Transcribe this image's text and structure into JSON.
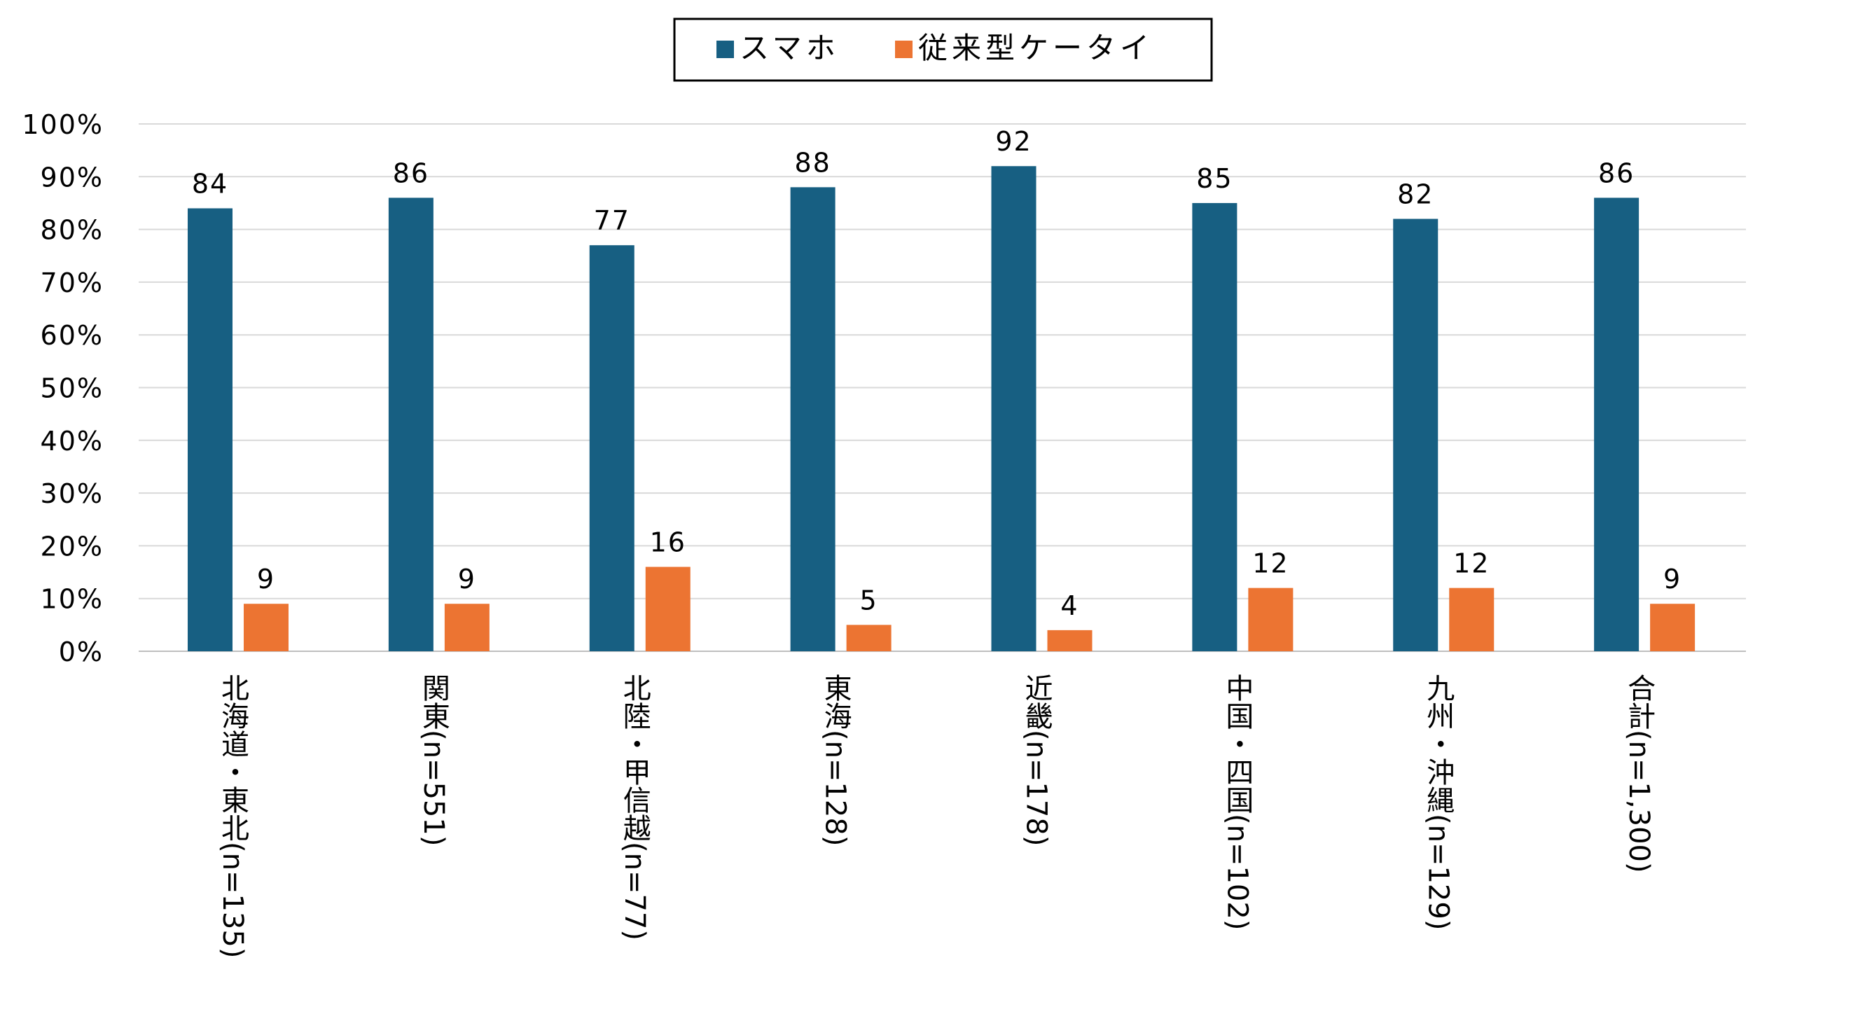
{
  "chart_data": {
    "type": "bar",
    "categories": [
      "北海道・東北(n=135)",
      "関東(n=551)",
      "北陸・甲信越(n=77)",
      "東海(n=128)",
      "近畿(n=178)",
      "中国・四国(n=102)",
      "九州・沖縄(n=129)",
      "合計(n=1,300)"
    ],
    "series": [
      {
        "name": "スマホ",
        "values": [
          84,
          86,
          77,
          88,
          92,
          85,
          82,
          86
        ],
        "color": "#175F82"
      },
      {
        "name": "従来型ケータイ",
        "values": [
          9,
          9,
          16,
          5,
          4,
          12,
          12,
          9
        ],
        "color": "#EC7432"
      }
    ],
    "yticks": [
      "0%",
      "10%",
      "20%",
      "30%",
      "40%",
      "50%",
      "60%",
      "70%",
      "80%",
      "90%",
      "100%"
    ],
    "ylim": [
      0,
      100
    ],
    "grid": true,
    "legend_position": "top-center",
    "gridline_color": "#D9D9D9",
    "axis_color": "#BFBFBF"
  }
}
